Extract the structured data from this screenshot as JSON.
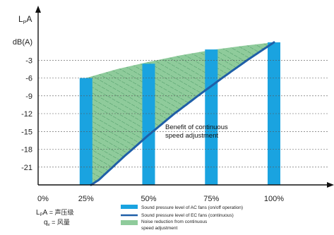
{
  "chart_data": {
    "type": "bar",
    "y_axis_title": "L",
    "y_axis_title_sub": "P",
    "y_axis_title_tail": "A",
    "y_unit": "dB(A)",
    "ylim": [
      -24,
      0
    ],
    "y_ticks": [
      -3,
      -6,
      -9,
      -12,
      -15,
      -18,
      -21
    ],
    "xlim": [
      0,
      100
    ],
    "x_ticks": [
      {
        "value": 0,
        "label": "0%"
      },
      {
        "value": 25,
        "label": "25%"
      },
      {
        "value": 50,
        "label": "50%"
      },
      {
        "value": 75,
        "label": "75%"
      },
      {
        "value": 100,
        "label": "100%"
      }
    ],
    "series": [
      {
        "kind": "bar",
        "name": "Sound pressure level of AC fans (on/off operation)",
        "color": "#1aa3e0",
        "x": [
          25,
          50,
          75,
          100
        ],
        "y": [
          -6,
          -3.6,
          -1.2,
          0
        ]
      },
      {
        "kind": "line",
        "name": "Sound pressure level of EC fans (continuous)",
        "color": "#1f5fa8",
        "x": [
          27,
          30,
          40,
          50,
          60,
          70,
          80,
          90,
          100
        ],
        "y": [
          -24,
          -23.2,
          -19.3,
          -15.6,
          -12.1,
          -8.9,
          -5.8,
          -2.8,
          0
        ]
      },
      {
        "kind": "area",
        "name": "Noise reduction from continuous speed adjustment",
        "color": "#8fcb9b",
        "hatch_color": "#3c8f5a"
      }
    ],
    "upper_envelope": {
      "x": [
        25,
        37.5,
        50,
        62.5,
        75,
        87.5,
        100
      ],
      "y": [
        -6,
        -4.5,
        -3.3,
        -2.2,
        -1.3,
        -0.6,
        0
      ]
    },
    "annotation": [
      "Benefit of continuous",
      "speed adjustment"
    ],
    "notes": [
      {
        "symbol": "L",
        "sub": "P",
        "tail": "A",
        "text": " = 声压级"
      },
      {
        "symbol": "q",
        "sub": "v",
        "tail": "",
        "text": " = 风量"
      }
    ],
    "legend_lines": [
      "Sound pressure level of AC fans (on/off operation)",
      "Sound pressure level of EC fans (continuous)",
      "Noise reduction from continuous",
      "speed adjustment"
    ]
  }
}
